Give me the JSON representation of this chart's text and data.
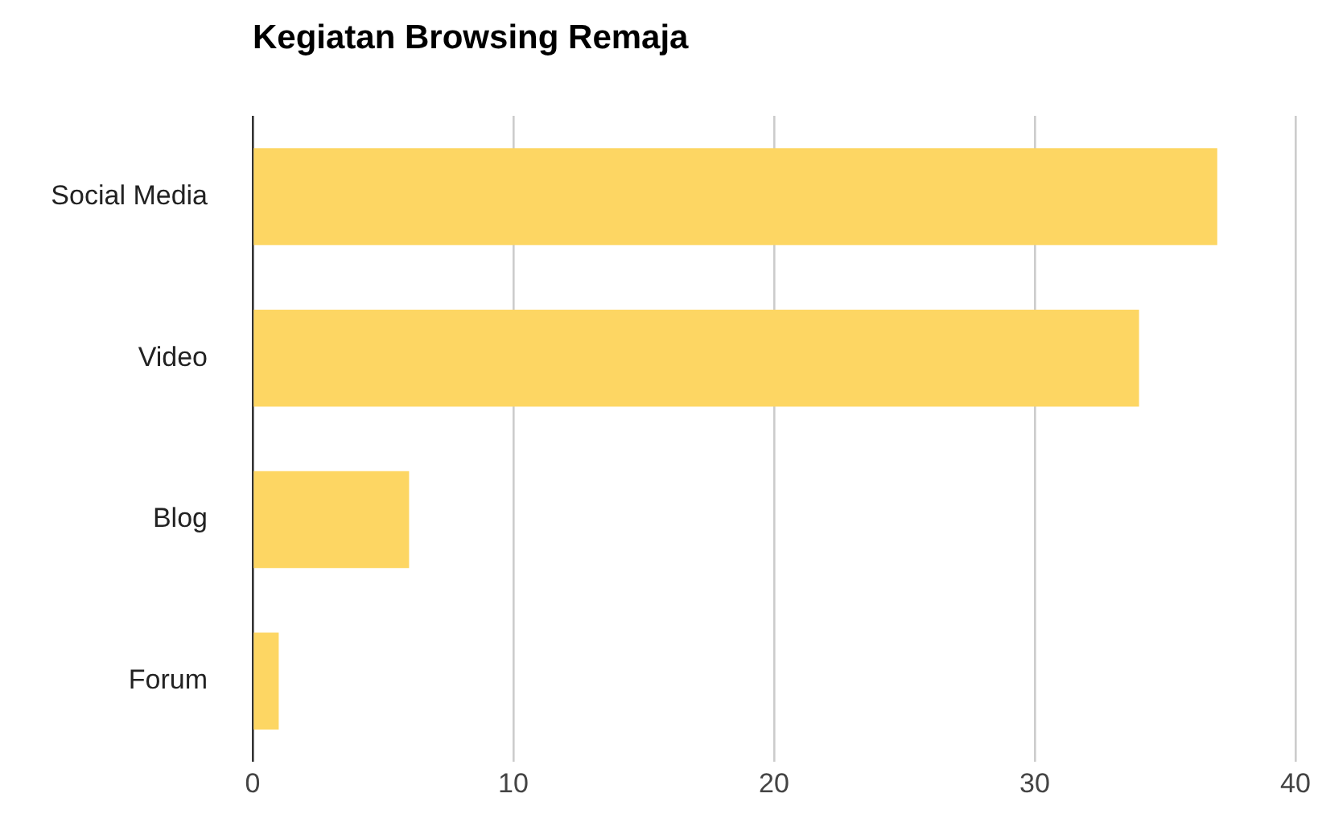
{
  "chart_data": {
    "type": "bar",
    "title": "Kegiatan Browsing Remaja",
    "orientation": "horizontal",
    "categories": [
      "Social Media",
      "Video",
      "Blog",
      "Forum"
    ],
    "values": [
      37,
      34,
      6,
      1
    ],
    "color": "#fdd663",
    "xlim": [
      0,
      40
    ],
    "xticks": [
      0,
      10,
      20,
      30,
      40
    ],
    "grid": "x",
    "legend": false
  }
}
